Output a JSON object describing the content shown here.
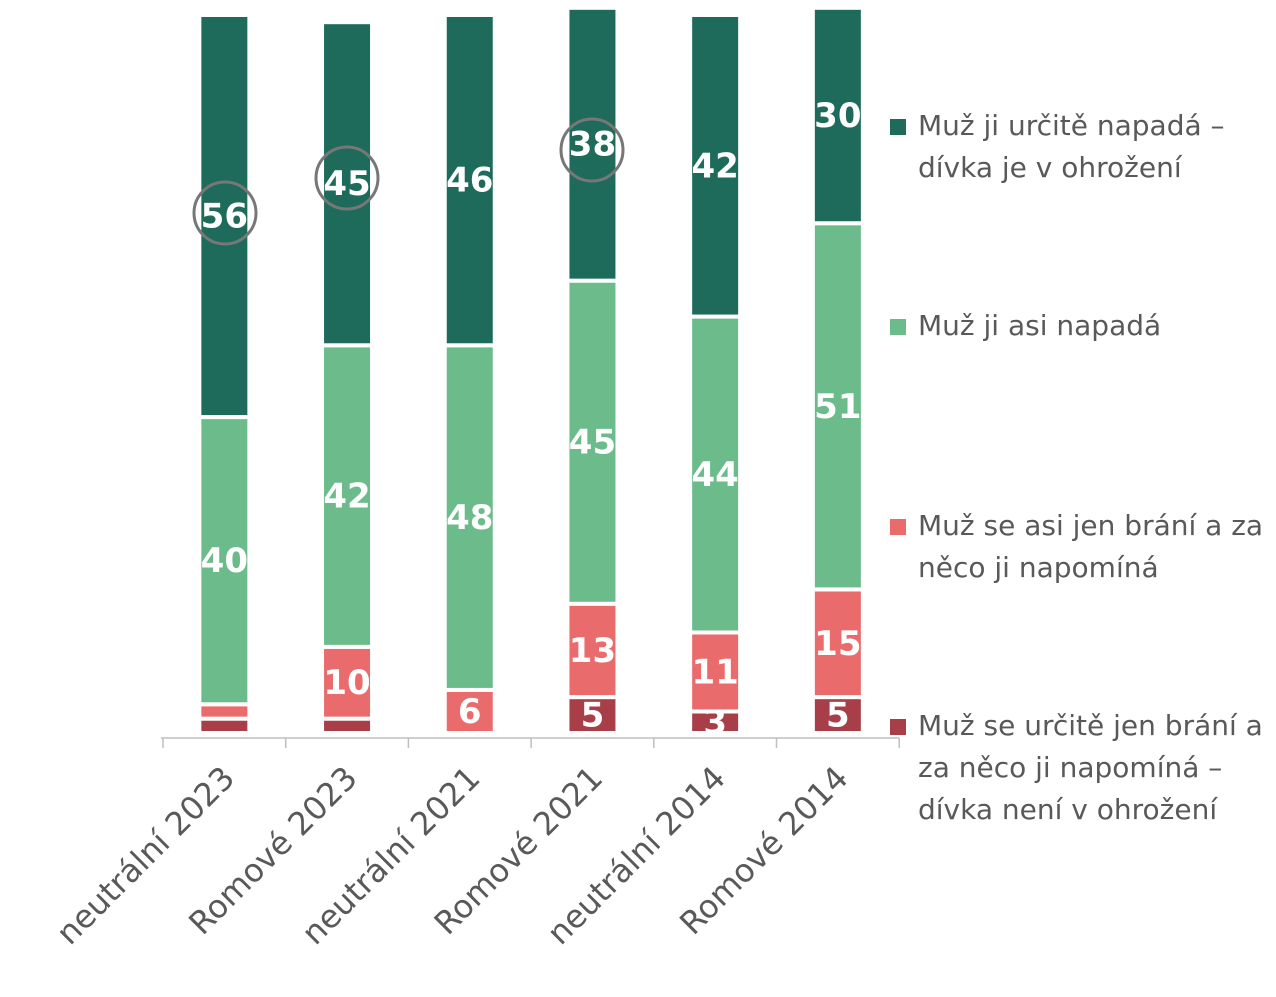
{
  "chart_data": {
    "type": "stacked-bar",
    "categories": [
      "neutrální 2023",
      "Romové 2023",
      "neutrální 2021",
      "Romové 2021",
      "neutrální 2014",
      "Romové 2014"
    ],
    "ylim": [
      0,
      100
    ],
    "series": [
      {
        "name": "Muž se určitě jen brání a za něco ji napomíná – dívka není v ohrožení",
        "color": "#a83f48",
        "values": [
          2,
          2,
          0,
          5,
          3,
          5
        ],
        "value_labels": [
          null,
          null,
          null,
          "5",
          "3",
          "5"
        ]
      },
      {
        "name": "Muž se asi jen brání a za něco ji napomíná",
        "color": "#e96b6b",
        "values": [
          2,
          10,
          6,
          13,
          11,
          15
        ],
        "value_labels": [
          null,
          "10",
          "6",
          "13",
          "11",
          "15"
        ]
      },
      {
        "name": "Muž ji asi napadá",
        "color": "#6bbb8b",
        "values": [
          40,
          42,
          48,
          45,
          44,
          51
        ],
        "value_labels": [
          "40",
          "42",
          "48",
          "45",
          "44",
          "51"
        ]
      },
      {
        "name": "Muž ji určitě napadá – dívka je v ohrožení",
        "color": "#1f6b5b",
        "values": [
          56,
          45,
          46,
          38,
          42,
          30
        ],
        "value_labels": [
          "56",
          "45",
          "46",
          "38",
          "42",
          "30"
        ]
      }
    ]
  }
}
